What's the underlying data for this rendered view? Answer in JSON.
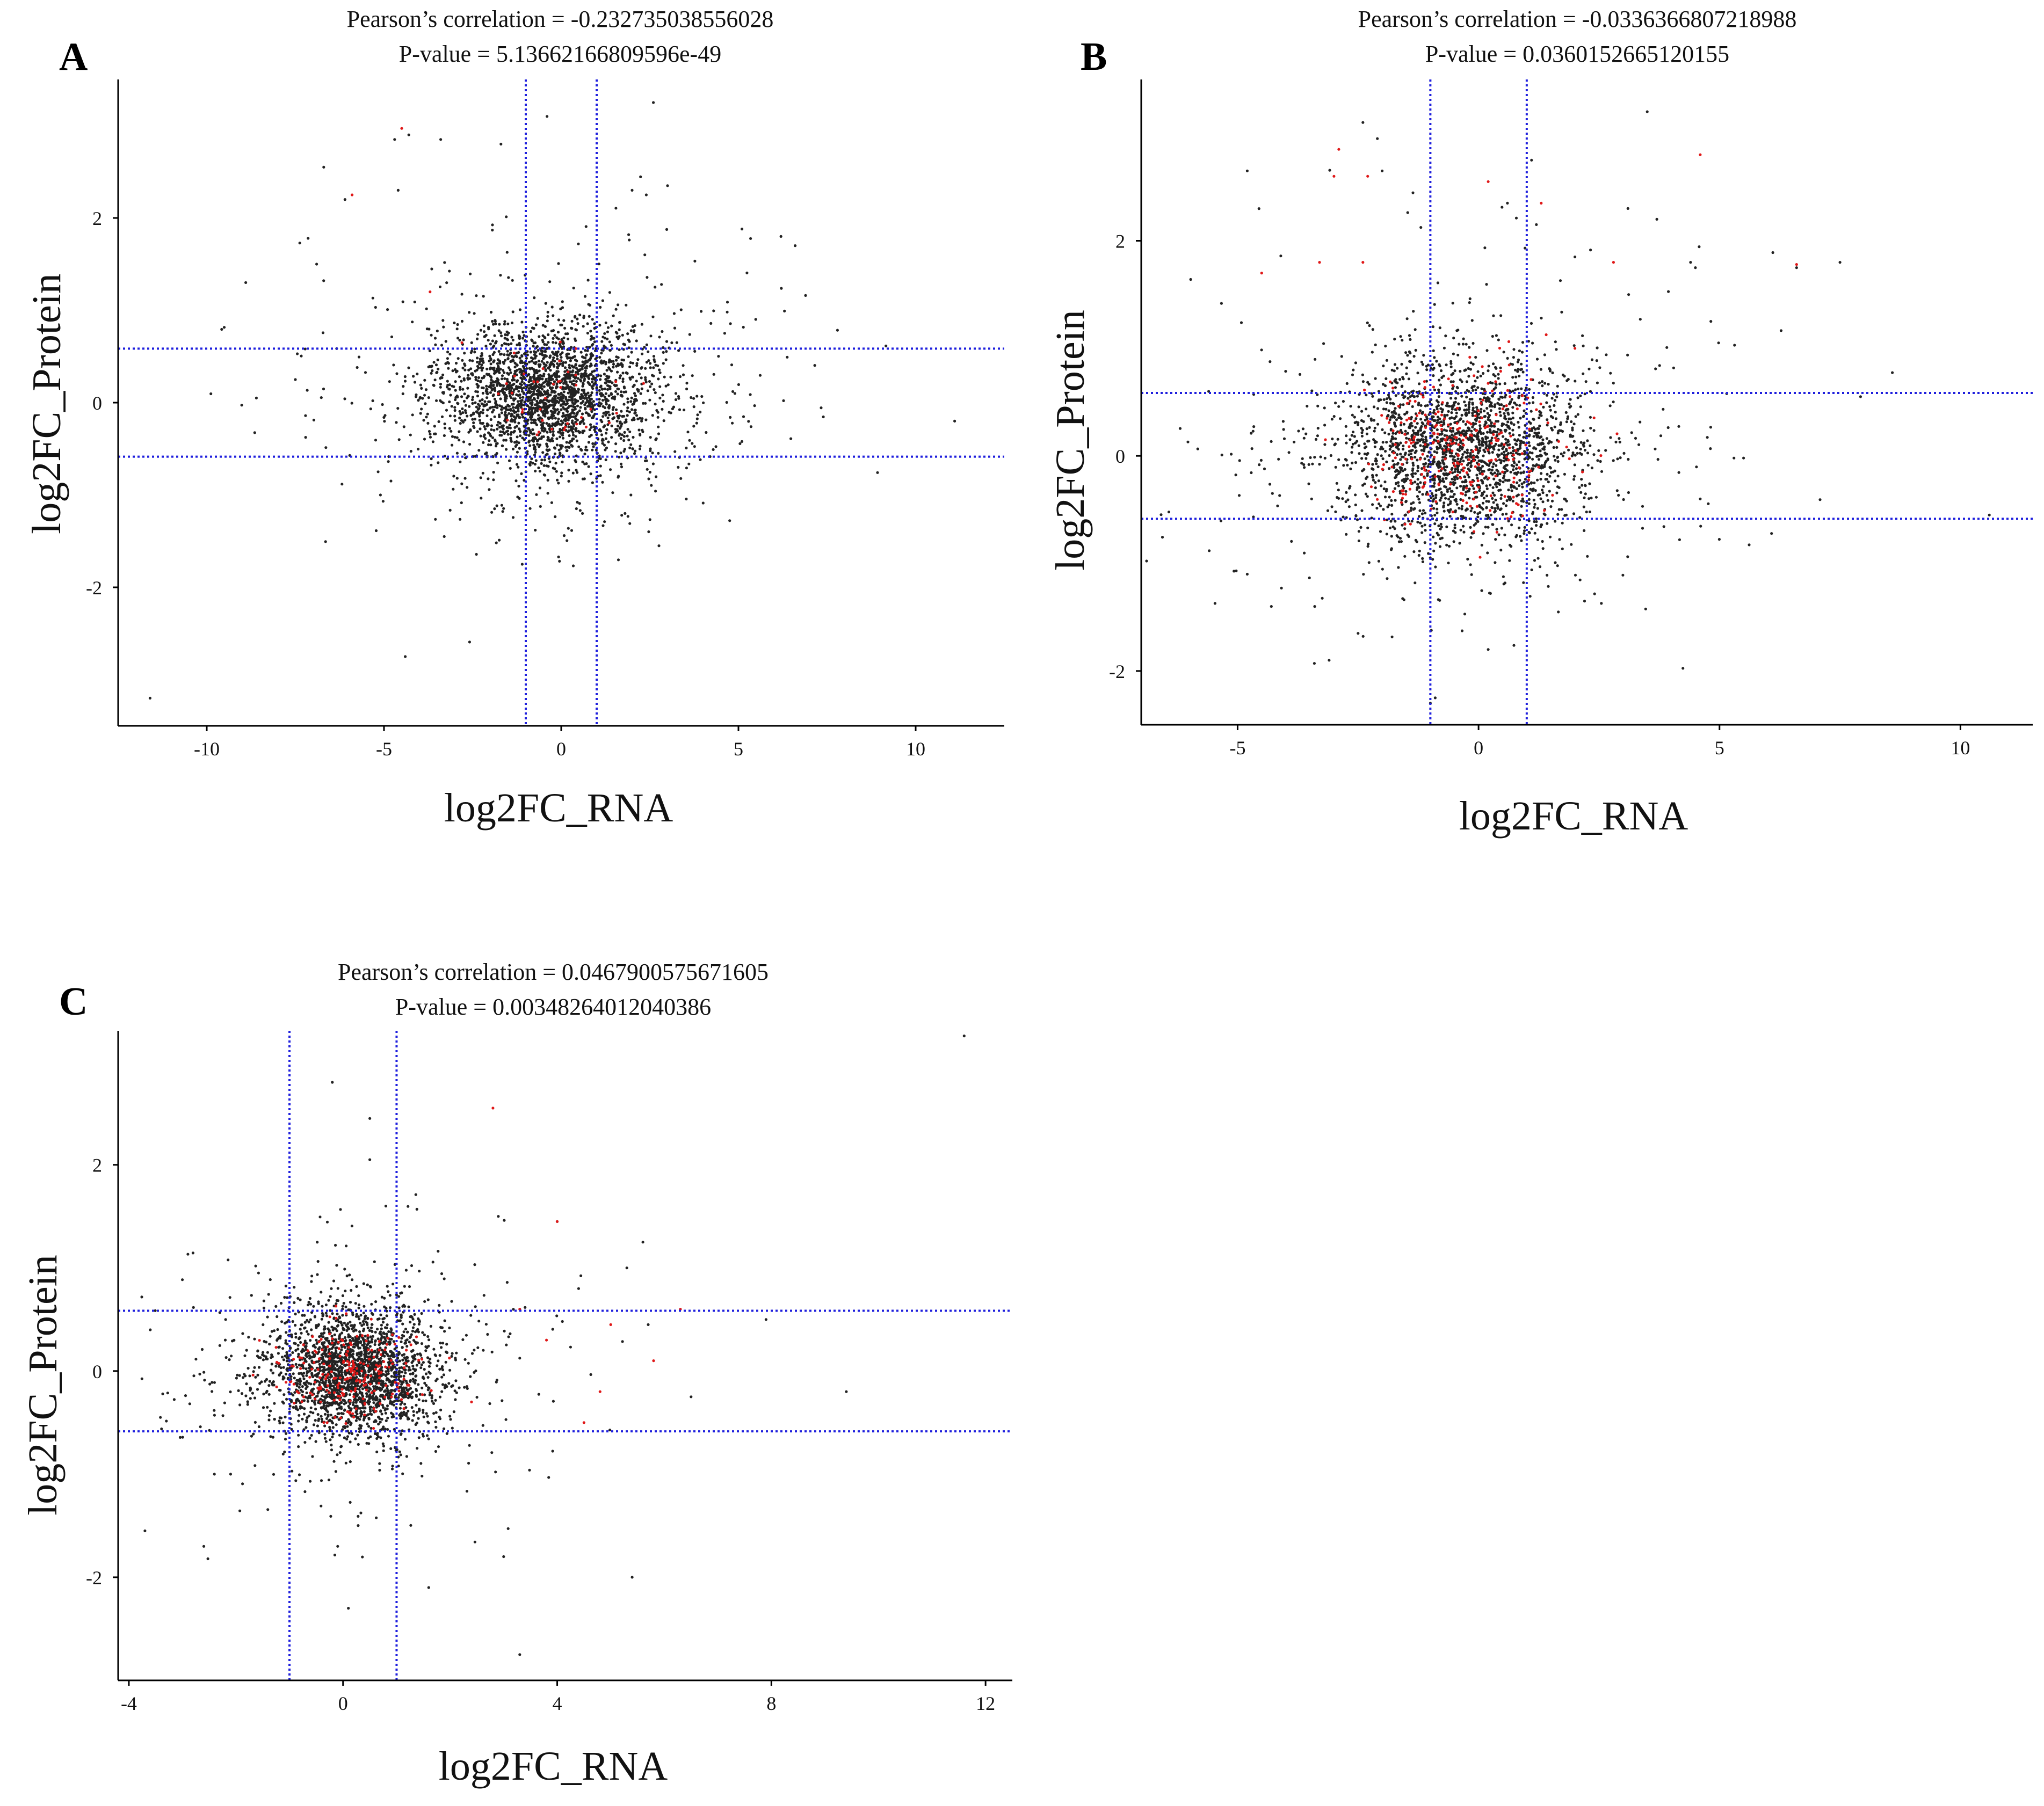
{
  "colors": {
    "threshold": "#1f1fdd",
    "point_default": "#222222",
    "point_significant": "#e01818",
    "axis": "#000000"
  },
  "chart_data": [
    {
      "panel": "A",
      "type": "scatter",
      "stats": {
        "correlation_text": "Pearson’s correlation = -0.232735038556028",
        "pvalue_text": "P-value = 5.13662166809596e-49"
      },
      "xlabel": "log2FC_RNA",
      "ylabel": "log2FC_Protein",
      "xlim": [
        -12.5,
        12.5
      ],
      "ylim": [
        -3.5,
        3.5
      ],
      "x_ticks": [
        -10,
        -5,
        0,
        5,
        10
      ],
      "y_ticks": [
        -2,
        0,
        2
      ],
      "x_tick_labels": [
        "-10",
        "-5",
        "0",
        "5",
        "10"
      ],
      "y_tick_labels": [
        "-2",
        "0",
        "2"
      ],
      "thresholds": {
        "x": [
          -1,
          1
        ],
        "y": [
          -0.585,
          0.585
        ]
      },
      "cloud": {
        "center": [
          -0.3,
          0.1
        ],
        "sd": [
          1.5,
          0.38
        ],
        "n_black": 2600,
        "n_red": 40
      },
      "outliers": [
        [
          -11.6,
          -3.2
        ],
        [
          -8.9,
          1.3
        ],
        [
          -8.6,
          0.05
        ],
        [
          -7.5,
          0.25
        ],
        [
          -6.9,
          1.5
        ],
        [
          -6.7,
          2.55
        ],
        [
          -6.1,
          2.2
        ],
        [
          -5.1,
          -1.0
        ],
        [
          -4.6,
          2.3
        ],
        [
          -4.4,
          -2.75
        ],
        [
          -4.7,
          2.85
        ],
        [
          -4.3,
          2.9
        ],
        [
          -3.4,
          2.85
        ],
        [
          -3.3,
          -1.45
        ],
        [
          -1.7,
          2.8
        ],
        [
          -1.6,
          0.85
        ],
        [
          -1.1,
          -1.75
        ],
        [
          -0.4,
          3.1
        ],
        [
          0.6,
          -1.2
        ],
        [
          1.8,
          -1.2
        ],
        [
          2.0,
          2.3
        ],
        [
          2.4,
          2.25
        ],
        [
          2.6,
          3.25
        ],
        [
          3.0,
          2.35
        ],
        [
          3.3,
          -0.7
        ],
        [
          4.9,
          0.1
        ],
        [
          5.1,
          1.88
        ],
        [
          6.2,
          1.8
        ],
        [
          6.6,
          1.7
        ],
        [
          11.1,
          -0.2
        ]
      ],
      "red_outliers": [
        [
          -4.5,
          2.97
        ],
        [
          -5.9,
          2.25
        ],
        [
          -3.7,
          1.2
        ]
      ]
    },
    {
      "panel": "B",
      "type": "scatter",
      "stats": {
        "correlation_text": "Pearson’s correlation = -0.0336366807218988",
        "pvalue_text": "P-value = 0.0360152665120155"
      },
      "xlabel": "log2FC_RNA",
      "ylabel": "log2FC_Protein",
      "xlim": [
        -7.0,
        11.5
      ],
      "ylim": [
        -2.5,
        3.5
      ],
      "x_ticks": [
        -5,
        0,
        5,
        10
      ],
      "y_ticks": [
        -2,
        0,
        2
      ],
      "x_tick_labels": [
        "-5",
        "0",
        "5",
        "10"
      ],
      "y_tick_labels": [
        "-2",
        "0",
        "2"
      ],
      "thresholds": {
        "x": [
          -1,
          1
        ],
        "y": [
          -0.585,
          0.585
        ]
      },
      "cloud": {
        "center": [
          -0.3,
          0.05
        ],
        "sd": [
          1.25,
          0.42
        ],
        "n_black": 2300,
        "n_red": 260
      },
      "outliers": [
        [
          -5.6,
          0.6
        ],
        [
          -4.8,
          2.65
        ],
        [
          -4.8,
          -1.1
        ],
        [
          -4.3,
          -1.4
        ],
        [
          -3.4,
          -1.4
        ],
        [
          -2.4,
          3.1
        ],
        [
          -2.1,
          2.95
        ],
        [
          -2.0,
          2.65
        ],
        [
          -2.5,
          -1.65
        ],
        [
          -1.0,
          -2.3
        ],
        [
          -0.9,
          -2.25
        ],
        [
          0.2,
          -1.8
        ],
        [
          0.6,
          2.35
        ],
        [
          1.1,
          2.75
        ],
        [
          1.2,
          2.15
        ],
        [
          2.0,
          1.85
        ],
        [
          2.2,
          -1.35
        ],
        [
          3.1,
          2.3
        ],
        [
          3.5,
          3.2
        ],
        [
          3.7,
          2.2
        ],
        [
          4.4,
          1.8
        ],
        [
          4.5,
          1.75
        ],
        [
          4.6,
          -0.4
        ],
        [
          5.3,
          -0.02
        ],
        [
          5.5,
          -0.02
        ],
        [
          6.6,
          1.75
        ],
        [
          7.5,
          1.8
        ],
        [
          10.6,
          -0.55
        ]
      ],
      "red_outliers": [
        [
          -2.3,
          2.6
        ],
        [
          -2.9,
          2.85
        ],
        [
          -3.3,
          1.8
        ],
        [
          -2.4,
          1.8
        ],
        [
          -4.5,
          1.7
        ],
        [
          -3.0,
          2.6
        ],
        [
          0.2,
          2.55
        ],
        [
          1.3,
          2.35
        ],
        [
          4.6,
          2.8
        ],
        [
          2.8,
          1.8
        ],
        [
          2.0,
          1.0
        ],
        [
          6.6,
          1.78
        ]
      ]
    },
    {
      "panel": "C",
      "type": "scatter",
      "stats": {
        "correlation_text": "Pearson’s correlation = 0.0467900575671605",
        "pvalue_text": "P-value = 0.00348264012040386"
      },
      "xlabel": "log2FC_RNA",
      "ylabel": "log2FC_Protein",
      "xlim": [
        -4.2,
        12.5
      ],
      "ylim": [
        -3.0,
        3.3
      ],
      "x_ticks": [
        -4,
        0,
        4,
        8,
        12
      ],
      "y_ticks": [
        -2,
        0,
        2
      ],
      "x_tick_labels": [
        "-4",
        "0",
        "4",
        "8",
        "12"
      ],
      "y_tick_labels": [
        "-2",
        "0",
        "2"
      ],
      "thresholds": {
        "x": [
          -1,
          1
        ],
        "y": [
          -0.585,
          0.585
        ]
      },
      "cloud": {
        "center": [
          0.2,
          0.0
        ],
        "sd": [
          0.8,
          0.3
        ],
        "n_black": 2400,
        "n_red": 220
      },
      "outliers": [
        [
          -3.6,
          0.4
        ],
        [
          -3.7,
          -1.55
        ],
        [
          -2.6,
          -1.7
        ],
        [
          -2.1,
          -1.0
        ],
        [
          -0.2,
          2.8
        ],
        [
          0.5,
          2.05
        ],
        [
          0.5,
          2.45
        ],
        [
          0.8,
          1.6
        ],
        [
          0.1,
          -2.3
        ],
        [
          -0.1,
          -1.7
        ],
        [
          1.6,
          -2.1
        ],
        [
          2.9,
          1.5
        ],
        [
          3.0,
          -1.8
        ],
        [
          3.3,
          -2.75
        ],
        [
          4.0,
          1.45
        ],
        [
          4.4,
          0.8
        ],
        [
          5.3,
          1.0
        ],
        [
          5.4,
          -2.0
        ],
        [
          5.6,
          1.25
        ],
        [
          5.7,
          0.45
        ],
        [
          6.5,
          -0.25
        ],
        [
          7.9,
          0.5
        ],
        [
          9.4,
          -0.2
        ],
        [
          11.6,
          3.25
        ]
      ],
      "red_outliers": [
        [
          2.8,
          2.55
        ],
        [
          4.0,
          1.45
        ],
        [
          6.3,
          0.6
        ],
        [
          5.8,
          0.1
        ],
        [
          4.5,
          -0.5
        ],
        [
          3.3,
          0.6
        ],
        [
          2.4,
          -0.3
        ],
        [
          5.0,
          0.45
        ],
        [
          4.8,
          -0.2
        ],
        [
          3.8,
          0.3
        ]
      ]
    }
  ]
}
